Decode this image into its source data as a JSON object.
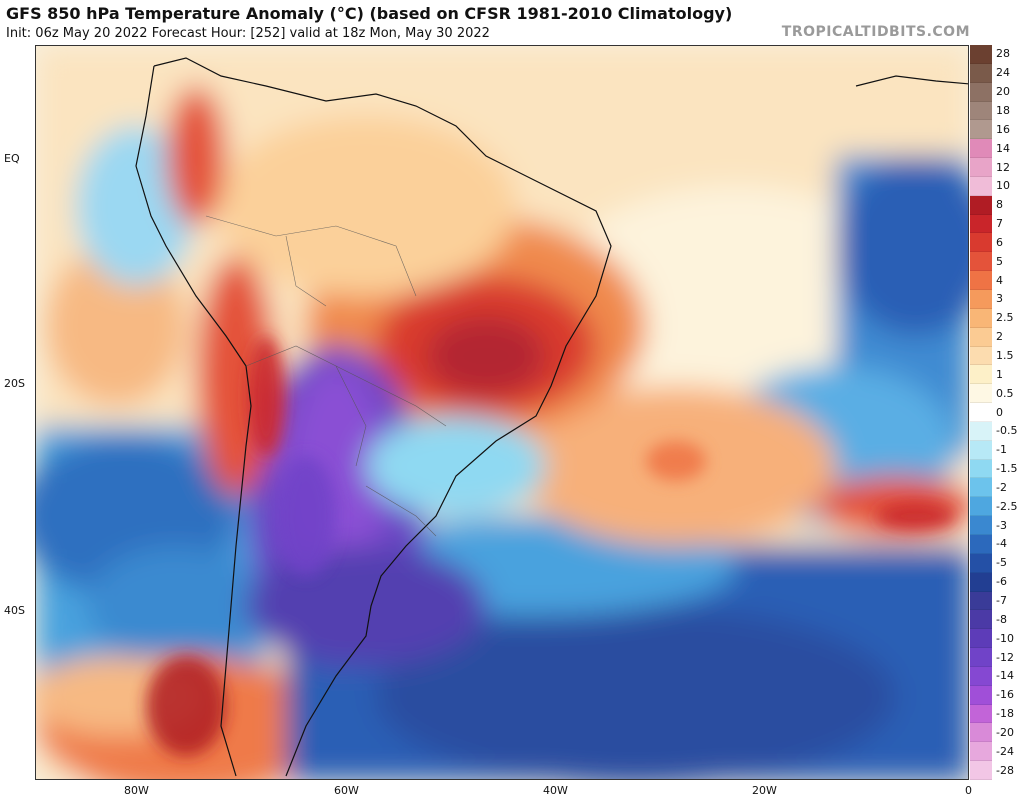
{
  "header": {
    "title": "GFS 850 hPa Temperature Anomaly (°C) (based on CFSR 1981-2010 Climatology)",
    "subtitle": "Init: 06z May 20 2022   Forecast Hour: [252]   valid at 18z Mon, May 30 2022",
    "brand": "TROPICALTIDBITS.COM"
  },
  "map": {
    "region": "South America and South Atlantic",
    "lat_labels": [
      "EQ",
      "20S",
      "40S"
    ],
    "lon_labels": [
      "80W",
      "60W",
      "40W",
      "20W",
      "0"
    ]
  },
  "colorbar": {
    "labels": [
      "28",
      "24",
      "20",
      "18",
      "16",
      "14",
      "12",
      "10",
      "8",
      "7",
      "6",
      "5",
      "4",
      "3",
      "2.5",
      "2",
      "1.5",
      "1",
      "0.5",
      "0",
      "-0.5",
      "-1",
      "-1.5",
      "-2",
      "-2.5",
      "-3",
      "-4",
      "-5",
      "-6",
      "-7",
      "-8",
      "-10",
      "-12",
      "-14",
      "-16",
      "-18",
      "-20",
      "-24",
      "-28"
    ],
    "colors": [
      "#6b4030",
      "#7a5a4a",
      "#8d7164",
      "#9e857a",
      "#b0998f",
      "#e08ab8",
      "#e8a4c8",
      "#f0bcd8",
      "#b01c24",
      "#c9252a",
      "#d93a2f",
      "#e4533a",
      "#ef7345",
      "#f59a5c",
      "#f9b676",
      "#fbcb93",
      "#fcdcaf",
      "#fdf0c8",
      "#fef8e4",
      "#ffffff",
      "#d8f3f8",
      "#b7e9f6",
      "#8fd9f2",
      "#6cc3ec",
      "#4ea7e0",
      "#3a88d0",
      "#2c69bc",
      "#2450a6",
      "#223e92",
      "#3a3b98",
      "#4b3aa6",
      "#5d3cb8",
      "#7043c8",
      "#8548d2",
      "#a04fd8",
      "#c264d8",
      "#d98ad8",
      "#e7a8dd",
      "#f2c6e6"
    ]
  }
}
